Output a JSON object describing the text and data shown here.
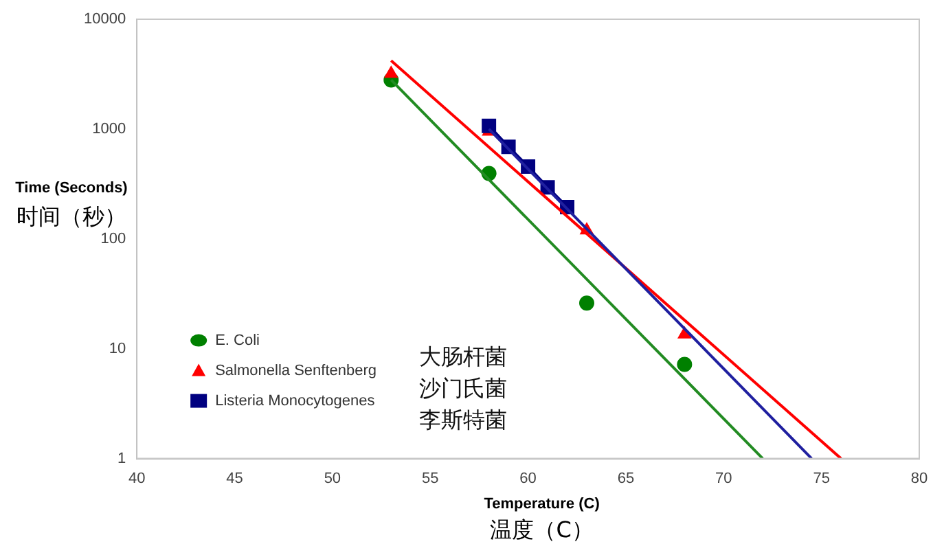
{
  "chart_data": {
    "type": "scatter",
    "xlabel": "Temperature (C)\n温度（C）",
    "ylabel": "Time (Seconds)\n时间（秒）",
    "log": "y",
    "xlim": [
      40,
      80
    ],
    "xticks": [
      40,
      45,
      50,
      55,
      60,
      65,
      70,
      75,
      80
    ],
    "ylim": [
      1,
      10000
    ],
    "yticks": [
      1,
      10,
      100,
      1000,
      10000
    ],
    "grid": false,
    "legend": "bottom left",
    "annotations": [
      "大肠杆菌",
      "沙门氏菌",
      "李斯特菌"
    ],
    "series": [
      {
        "name": "E. Coli",
        "color": "#008000",
        "marker": "circle",
        "x": [
          53,
          58,
          63,
          68
        ],
        "values": [
          2800,
          395,
          26,
          7.2
        ]
      },
      {
        "name": "Salmonella Senftenberg",
        "color": "#ff0000",
        "marker": "triangle",
        "x": [
          53,
          58,
          63,
          68
        ],
        "values": [
          3200,
          950,
          120,
          13.5
        ]
      },
      {
        "name": "Listeria Monocytogenes",
        "type": "line",
        "color": "#000080",
        "marker": "square",
        "x": [
          58,
          59,
          60,
          61,
          62
        ],
        "values": [
          1070,
          690,
          455,
          295,
          195
        ]
      },
      {
        "type": "line",
        "color": "#228b22",
        "marker": "none",
        "x": [
          53,
          72
        ],
        "values": [
          2800,
          1
        ]
      },
      {
        "type": "line",
        "color": "#ff0000",
        "marker": "none",
        "x": [
          53,
          76
        ],
        "values": [
          4200,
          1
        ]
      },
      {
        "type": "line",
        "color": "#1f1f9f",
        "marker": "none",
        "x": [
          58,
          74.5
        ],
        "values": [
          1000,
          1
        ]
      }
    ]
  }
}
